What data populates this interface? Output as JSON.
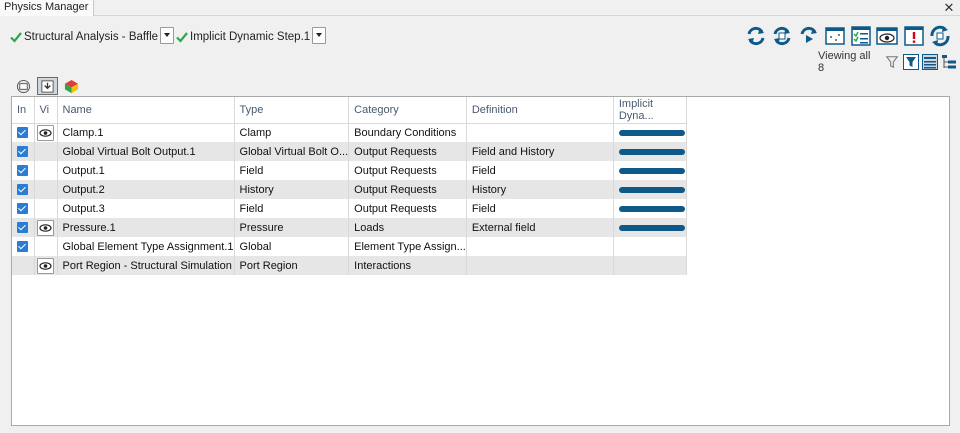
{
  "window": {
    "title": "Physics Manager",
    "close_glyph": "✕"
  },
  "steps": [
    {
      "label": "Structural Analysis - Baffle",
      "status_icon": "green-check-icon"
    },
    {
      "label": "Implicit Dynamic Step.1",
      "status_icon": "green-check-icon"
    }
  ],
  "toolbar": {
    "buttons": [
      {
        "name": "update-icon"
      },
      {
        "name": "update-all-icon"
      },
      {
        "name": "run-icon"
      },
      {
        "name": "select-table-icon"
      },
      {
        "name": "checklist-icon"
      },
      {
        "name": "visibility-icon"
      },
      {
        "name": "warnings-icon"
      },
      {
        "name": "synchronize-icon"
      }
    ]
  },
  "viewing": {
    "text": "Viewing all 8"
  },
  "view_tabs": [
    {
      "name": "features-view-tab"
    },
    {
      "name": "import-view-tab",
      "active": true
    },
    {
      "name": "simulation-view-tab"
    }
  ],
  "table": {
    "columns": [
      "In",
      "Vi",
      "Name",
      "Type",
      "Category",
      "Definition",
      "Implicit Dyna..."
    ],
    "rows": [
      {
        "in": true,
        "vi": true,
        "name": "Clamp.1",
        "type": "Clamp",
        "category": "Boundary Conditions",
        "definition": "",
        "step": true
      },
      {
        "in": true,
        "vi": false,
        "name": "Global Virtual Bolt Output.1",
        "type": "Global Virtual Bolt O...",
        "category": "Output Requests",
        "definition": "Field and History",
        "step": true
      },
      {
        "in": true,
        "vi": false,
        "name": "Output.1",
        "type": "Field",
        "category": "Output Requests",
        "definition": "Field",
        "step": true
      },
      {
        "in": true,
        "vi": false,
        "name": "Output.2",
        "type": "History",
        "category": "Output Requests",
        "definition": "History",
        "step": true
      },
      {
        "in": true,
        "vi": false,
        "name": "Output.3",
        "type": "Field",
        "category": "Output Requests",
        "definition": "Field",
        "step": true
      },
      {
        "in": true,
        "vi": true,
        "name": "Pressure.1",
        "type": "Pressure",
        "category": "Loads",
        "definition": "External field",
        "step": true
      },
      {
        "in": true,
        "vi": false,
        "name": "Global Element Type Assignment.1",
        "type": "Global",
        "category": "Element Type Assign...",
        "definition": "",
        "step": false
      },
      {
        "in": false,
        "vi": true,
        "name": "Port Region - Structural Simulation",
        "type": "Port Region",
        "category": "Interactions",
        "definition": "",
        "step": false
      }
    ]
  },
  "colors": {
    "accent": "#2b7cd3",
    "bar": "#0d5a8a",
    "check": "#2aa84a"
  }
}
